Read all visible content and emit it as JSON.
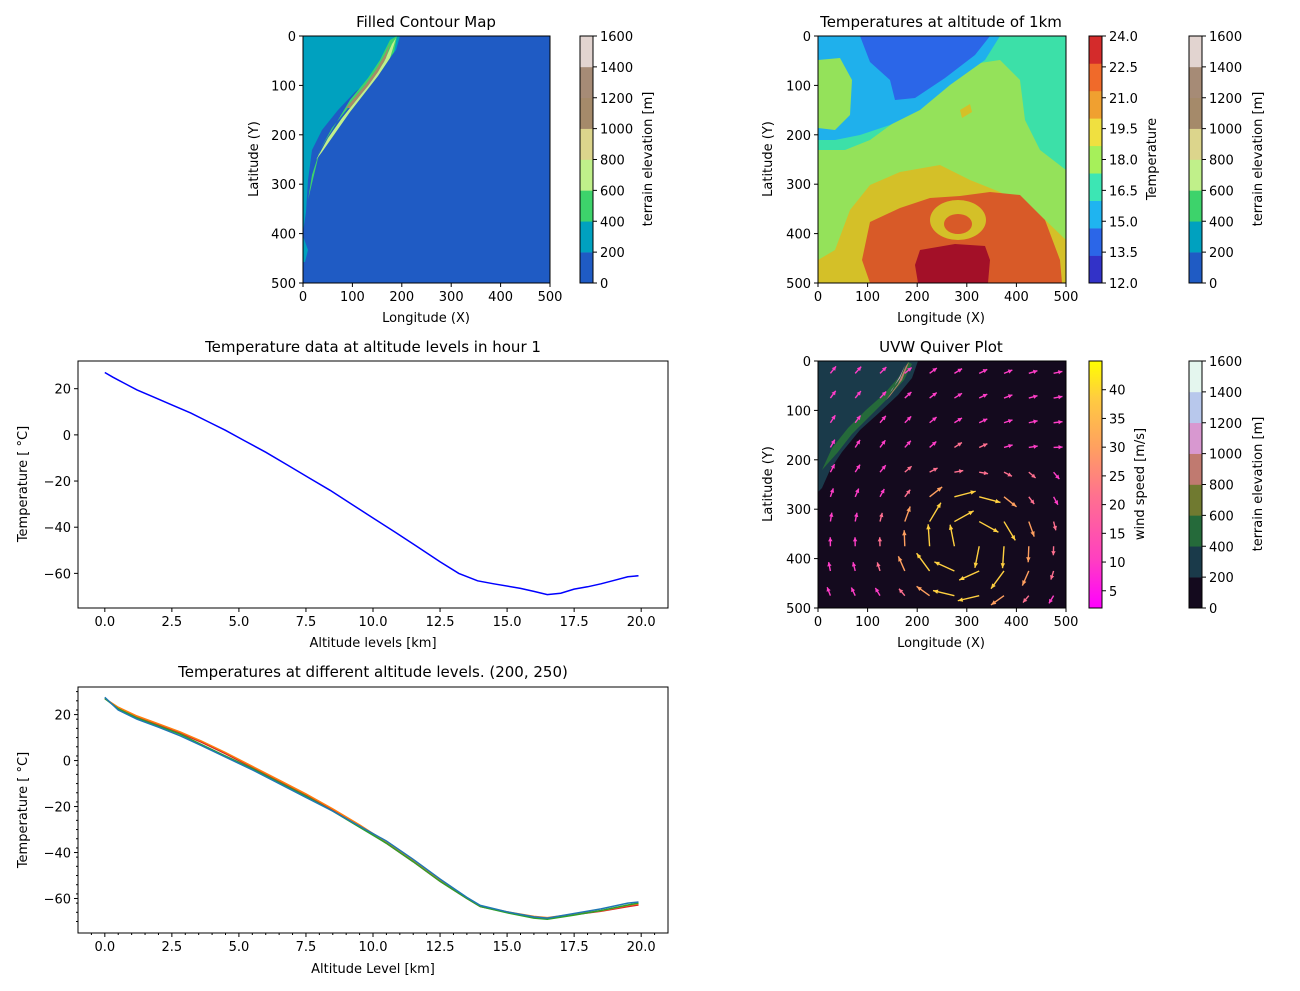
{
  "chart_data": [
    {
      "id": "terrain",
      "type": "heatmap",
      "title": "Filled Contour Map",
      "xlabel": "Longitude (X)",
      "ylabel": "Latitude (Y)",
      "xlim": [
        0,
        500
      ],
      "ylim": [
        500,
        0
      ],
      "xticks": [
        "0",
        "100",
        "200",
        "300",
        "400",
        "500"
      ],
      "yticks": [
        "0",
        "100",
        "200",
        "300",
        "400",
        "500"
      ],
      "colorbar": {
        "label": "terrain elevation [m]",
        "ticks": [
          "0",
          "200",
          "400",
          "600",
          "800",
          "1000",
          "1200",
          "1400",
          "1600"
        ],
        "levels": [
          0,
          200,
          400,
          600,
          800,
          1000,
          1200,
          1400,
          1600
        ],
        "colors": [
          "#1f5bc4",
          "#00a1bf",
          "#3dd36b",
          "#c0f08a",
          "#dcd58c",
          "#a58a6a",
          "#a68b76",
          "#e2d4d0"
        ]
      },
      "colors": {
        "sea": "#1f5bc4",
        "coast": "#00a1bf",
        "lowland": "#3dd36b",
        "upland": "#c0f08a",
        "ridge": "#a58a6a"
      }
    },
    {
      "id": "temp1km",
      "type": "heatmap",
      "title": "Temperatures at altitude of 1km",
      "xlabel": "Longitude (X)",
      "ylabel": "Latitude (Y)",
      "xlim": [
        0,
        500
      ],
      "ylim": [
        500,
        0
      ],
      "xticks": [
        "0",
        "100",
        "200",
        "300",
        "400",
        "500"
      ],
      "yticks": [
        "0",
        "100",
        "200",
        "300",
        "400",
        "500"
      ],
      "colorbar_temp": {
        "label": "Temperature",
        "ticks": [
          "12.0",
          "13.5",
          "15.0",
          "16.5",
          "18.0",
          "19.5",
          "21.0",
          "22.5",
          "24.0"
        ],
        "colors": [
          "#3232c8",
          "#2b66e8",
          "#1fb4f0",
          "#3ce6b4",
          "#a6f05a",
          "#f0e040",
          "#f0a030",
          "#f06a2a",
          "#d42b2b"
        ]
      },
      "colorbar_terrain": {
        "label": "terrain elevation [m]",
        "ticks": [
          "0",
          "200",
          "400",
          "600",
          "800",
          "1000",
          "1200",
          "1400",
          "1600"
        ],
        "colors": [
          "#1f5bc4",
          "#00a1bf",
          "#3dd36b",
          "#c0f08a",
          "#dcd58c",
          "#a58a6a",
          "#a68b76",
          "#e2d4d0"
        ]
      }
    },
    {
      "id": "profile",
      "type": "line",
      "title": "Temperature data at altitude levels in hour 1",
      "xlabel": "Altitude levels [km]",
      "ylabel": "Temperature [$^\\circ$C]",
      "ylabel_display": "Temperature [ °C]",
      "xlim": [
        -1,
        21
      ],
      "ylim": [
        -75,
        32
      ],
      "xticks": [
        0,
        2.5,
        5,
        7.5,
        10,
        12.5,
        15,
        17.5,
        20
      ],
      "xtick_labels": [
        "0.0",
        "2.5",
        "5.0",
        "7.5",
        "10.0",
        "12.5",
        "15.0",
        "17.5",
        "20.0"
      ],
      "yticks": [
        20,
        0,
        -20,
        -40,
        -60
      ],
      "ytick_labels": [
        "20",
        "0",
        "−20",
        "−40",
        "−60"
      ],
      "series": [
        {
          "color": "#0000ff",
          "x": [
            0.0,
            0.3,
            0.7,
            1.2,
            1.8,
            2.5,
            3.2,
            3.8,
            4.5,
            5.2,
            6.0,
            6.8,
            7.6,
            8.4,
            9.2,
            10.0,
            10.8,
            11.6,
            12.5,
            13.2,
            13.9,
            14.5,
            15.5,
            16.0,
            16.5,
            17.0,
            17.5,
            18.0,
            18.5,
            19.0,
            19.5,
            19.9
          ],
          "y": [
            27.0,
            25.0,
            22.5,
            19.5,
            16.5,
            13.0,
            9.5,
            6.0,
            2.0,
            -2.5,
            -7.5,
            -13.0,
            -18.5,
            -24.0,
            -30.0,
            -36.0,
            -42.0,
            -48.0,
            -55.0,
            -60.0,
            -63.2,
            -64.5,
            -66.5,
            -67.8,
            -69.2,
            -68.6,
            -66.8,
            -65.8,
            -64.5,
            -63.0,
            -61.5,
            -61.0
          ]
        }
      ]
    },
    {
      "id": "quiver",
      "type": "scatter",
      "title": "UVW Quiver Plot",
      "xlabel": "Longitude (X)",
      "ylabel": "Latitude (Y)",
      "xlim": [
        0,
        500
      ],
      "ylim": [
        500,
        0
      ],
      "xticks": [
        "0",
        "100",
        "200",
        "300",
        "400",
        "500"
      ],
      "yticks": [
        "0",
        "100",
        "200",
        "300",
        "400",
        "500"
      ],
      "colorbar_wind": {
        "label": "wind speed [m/s]",
        "ticks": [
          "5",
          "10",
          "15",
          "20",
          "25",
          "30",
          "35",
          "40"
        ],
        "range": [
          2,
          45
        ],
        "colors": [
          "#ff00ff",
          "#ff40c0",
          "#ff7090",
          "#ffa060",
          "#ffcc40",
          "#ffff00"
        ]
      },
      "colorbar_terrain": {
        "label": "terrain elevation [m]",
        "ticks": [
          "0",
          "200",
          "400",
          "600",
          "800",
          "1000",
          "1200",
          "1400",
          "1600"
        ],
        "colors": [
          "#140a1e",
          "#1a3a4a",
          "#256a3a",
          "#707a30",
          "#c07a70",
          "#d898d0",
          "#b8c8ec",
          "#e4f6ee"
        ]
      },
      "background": "#140a1e"
    },
    {
      "id": "multiprofile",
      "type": "line",
      "title": "Temperatures at different altitude levels. (200, 250)",
      "xlabel": "Altitude Level [km]",
      "ylabel": "Temperature [$^\\circ$C]",
      "ylabel_display": "Temperature [ °C]",
      "xlim": [
        -1,
        21
      ],
      "ylim": [
        -75,
        32
      ],
      "xticks": [
        0,
        2.5,
        5,
        7.5,
        10,
        12.5,
        15,
        17.5,
        20
      ],
      "xtick_labels": [
        "0.0",
        "2.5",
        "5.0",
        "7.5",
        "10.0",
        "12.5",
        "15.0",
        "17.5",
        "20.0"
      ],
      "yticks": [
        20,
        0,
        -20,
        -40,
        -60
      ],
      "ytick_labels": [
        "20",
        "0",
        "−20",
        "−40",
        "−60"
      ],
      "series": [
        {
          "color": "#d62728",
          "x": [
            0.0,
            0.5,
            1.2,
            2.0,
            2.8,
            3.6,
            4.5,
            5.5,
            6.5,
            7.5,
            8.5,
            9.5,
            10.5,
            11.5,
            12.5,
            13.5,
            14.0,
            15.0,
            16.0,
            16.5,
            17.5,
            18.5,
            19.5,
            19.9
          ],
          "y": [
            27.0,
            23.0,
            19.0,
            15.5,
            12.0,
            8.0,
            3.0,
            -3.0,
            -9.0,
            -15.0,
            -21.5,
            -28.5,
            -36.0,
            -44.0,
            -52.5,
            -60.0,
            -63.5,
            -66.0,
            -68.0,
            -68.5,
            -67.0,
            -65.5,
            -63.5,
            -62.8
          ]
        },
        {
          "color": "#ff7f0e",
          "x": [
            0.0,
            0.5,
            1.2,
            2.0,
            2.8,
            3.6,
            4.5,
            5.5,
            6.5,
            7.5,
            8.5,
            9.5,
            10.5,
            11.5,
            12.5,
            13.5,
            14.0,
            15.0,
            16.0,
            16.5,
            17.5,
            18.5,
            19.5,
            19.9
          ],
          "y": [
            27.0,
            23.2,
            19.4,
            16.0,
            12.5,
            8.5,
            3.5,
            -2.5,
            -8.5,
            -14.5,
            -21.0,
            -28.0,
            -35.5,
            -43.5,
            -52.0,
            -59.7,
            -63.3,
            -65.8,
            -67.8,
            -68.3,
            -66.8,
            -65.3,
            -63.0,
            -62.3
          ]
        },
        {
          "color": "#2ca02c",
          "x": [
            0.0,
            0.5,
            1.2,
            2.0,
            2.8,
            3.6,
            4.5,
            5.5,
            6.5,
            7.5,
            8.5,
            9.5,
            10.5,
            11.5,
            12.5,
            13.5,
            14.0,
            15.0,
            16.0,
            16.5,
            17.5,
            18.5,
            19.5,
            19.9
          ],
          "y": [
            27.0,
            22.5,
            18.5,
            15.0,
            11.5,
            7.0,
            2.0,
            -3.5,
            -9.5,
            -15.5,
            -22.0,
            -29.0,
            -36.0,
            -44.0,
            -52.5,
            -60.0,
            -63.5,
            -66.2,
            -68.5,
            -69.0,
            -67.2,
            -65.2,
            -62.8,
            -62.0
          ]
        },
        {
          "color": "#1f77b4",
          "x": [
            0.0,
            0.5,
            1.2,
            2.0,
            2.8,
            3.6,
            4.5,
            5.5,
            6.5,
            7.5,
            8.5,
            9.5,
            10.5,
            11.5,
            12.5,
            13.5,
            14.0,
            15.0,
            16.0,
            16.5,
            17.5,
            18.5,
            19.5,
            19.9
          ],
          "y": [
            27.5,
            22.0,
            18.0,
            14.5,
            10.8,
            6.5,
            1.5,
            -4.0,
            -10.0,
            -16.0,
            -22.0,
            -28.5,
            -35.0,
            -43.0,
            -51.5,
            -59.5,
            -63.0,
            -65.8,
            -68.0,
            -68.5,
            -66.5,
            -64.5,
            -62.0,
            -61.5
          ]
        }
      ]
    }
  ]
}
